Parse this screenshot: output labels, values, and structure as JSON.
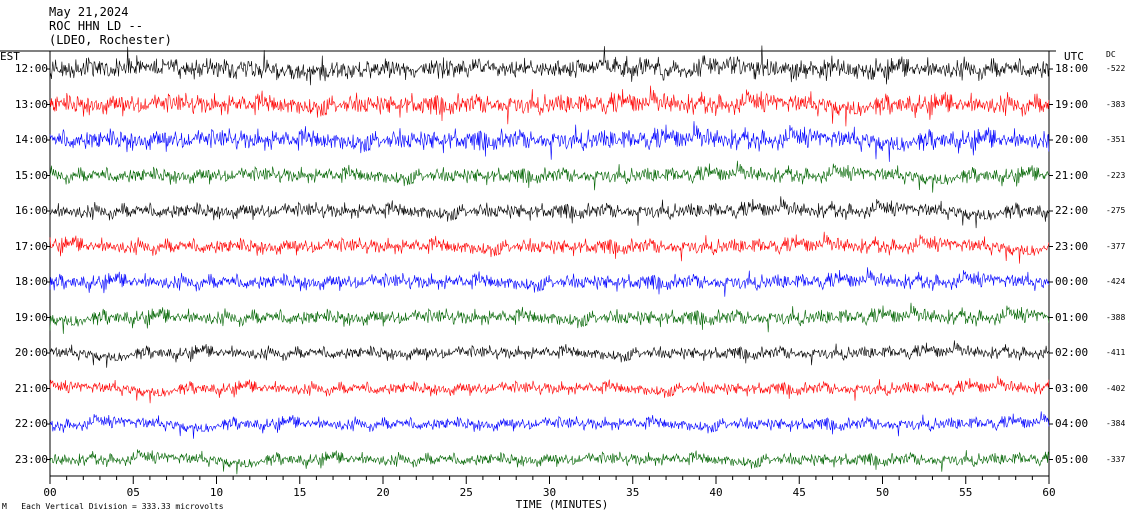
{
  "header": {
    "date": "May 21,2024",
    "station": "ROC HHN LD --",
    "location": "(LDEO, Rochester)"
  },
  "left_axis_label": "EST",
  "right_axis_label": "UTC",
  "dc_label": "DC",
  "xlabel": "TIME (MINUTES)",
  "footer": "Each Vertical Division = 333.33 microvolts",
  "footer_mark": "M",
  "chart_data": {
    "type": "line",
    "title": "",
    "xlabel": "TIME (MINUTES)",
    "xlim": [
      0,
      60
    ],
    "x_ticks": [
      "00",
      "05",
      "10",
      "15",
      "20",
      "25",
      "30",
      "35",
      "40",
      "45",
      "50",
      "55",
      "60"
    ],
    "rows": [
      {
        "est": "12:00",
        "utc": "18:00",
        "dc": "-522",
        "color": "#000000"
      },
      {
        "est": "13:00",
        "utc": "19:00",
        "dc": "-383",
        "color": "#ff0000"
      },
      {
        "est": "14:00",
        "utc": "20:00",
        "dc": "-351",
        "color": "#0000ff"
      },
      {
        "est": "15:00",
        "utc": "21:00",
        "dc": "-223",
        "color": "#006400"
      },
      {
        "est": "16:00",
        "utc": "22:00",
        "dc": "-275",
        "color": "#000000"
      },
      {
        "est": "17:00",
        "utc": "23:00",
        "dc": "-377",
        "color": "#ff0000"
      },
      {
        "est": "18:00",
        "utc": "00:00",
        "dc": "-424",
        "color": "#0000ff"
      },
      {
        "est": "19:00",
        "utc": "01:00",
        "dc": "-388",
        "color": "#006400"
      },
      {
        "est": "20:00",
        "utc": "02:00",
        "dc": "-411",
        "color": "#000000"
      },
      {
        "est": "21:00",
        "utc": "03:00",
        "dc": "-402",
        "color": "#ff0000"
      },
      {
        "est": "22:00",
        "utc": "04:00",
        "dc": "-384",
        "color": "#0000ff"
      },
      {
        "est": "23:00",
        "utc": "05:00",
        "dc": "-337",
        "color": "#006400"
      }
    ]
  }
}
